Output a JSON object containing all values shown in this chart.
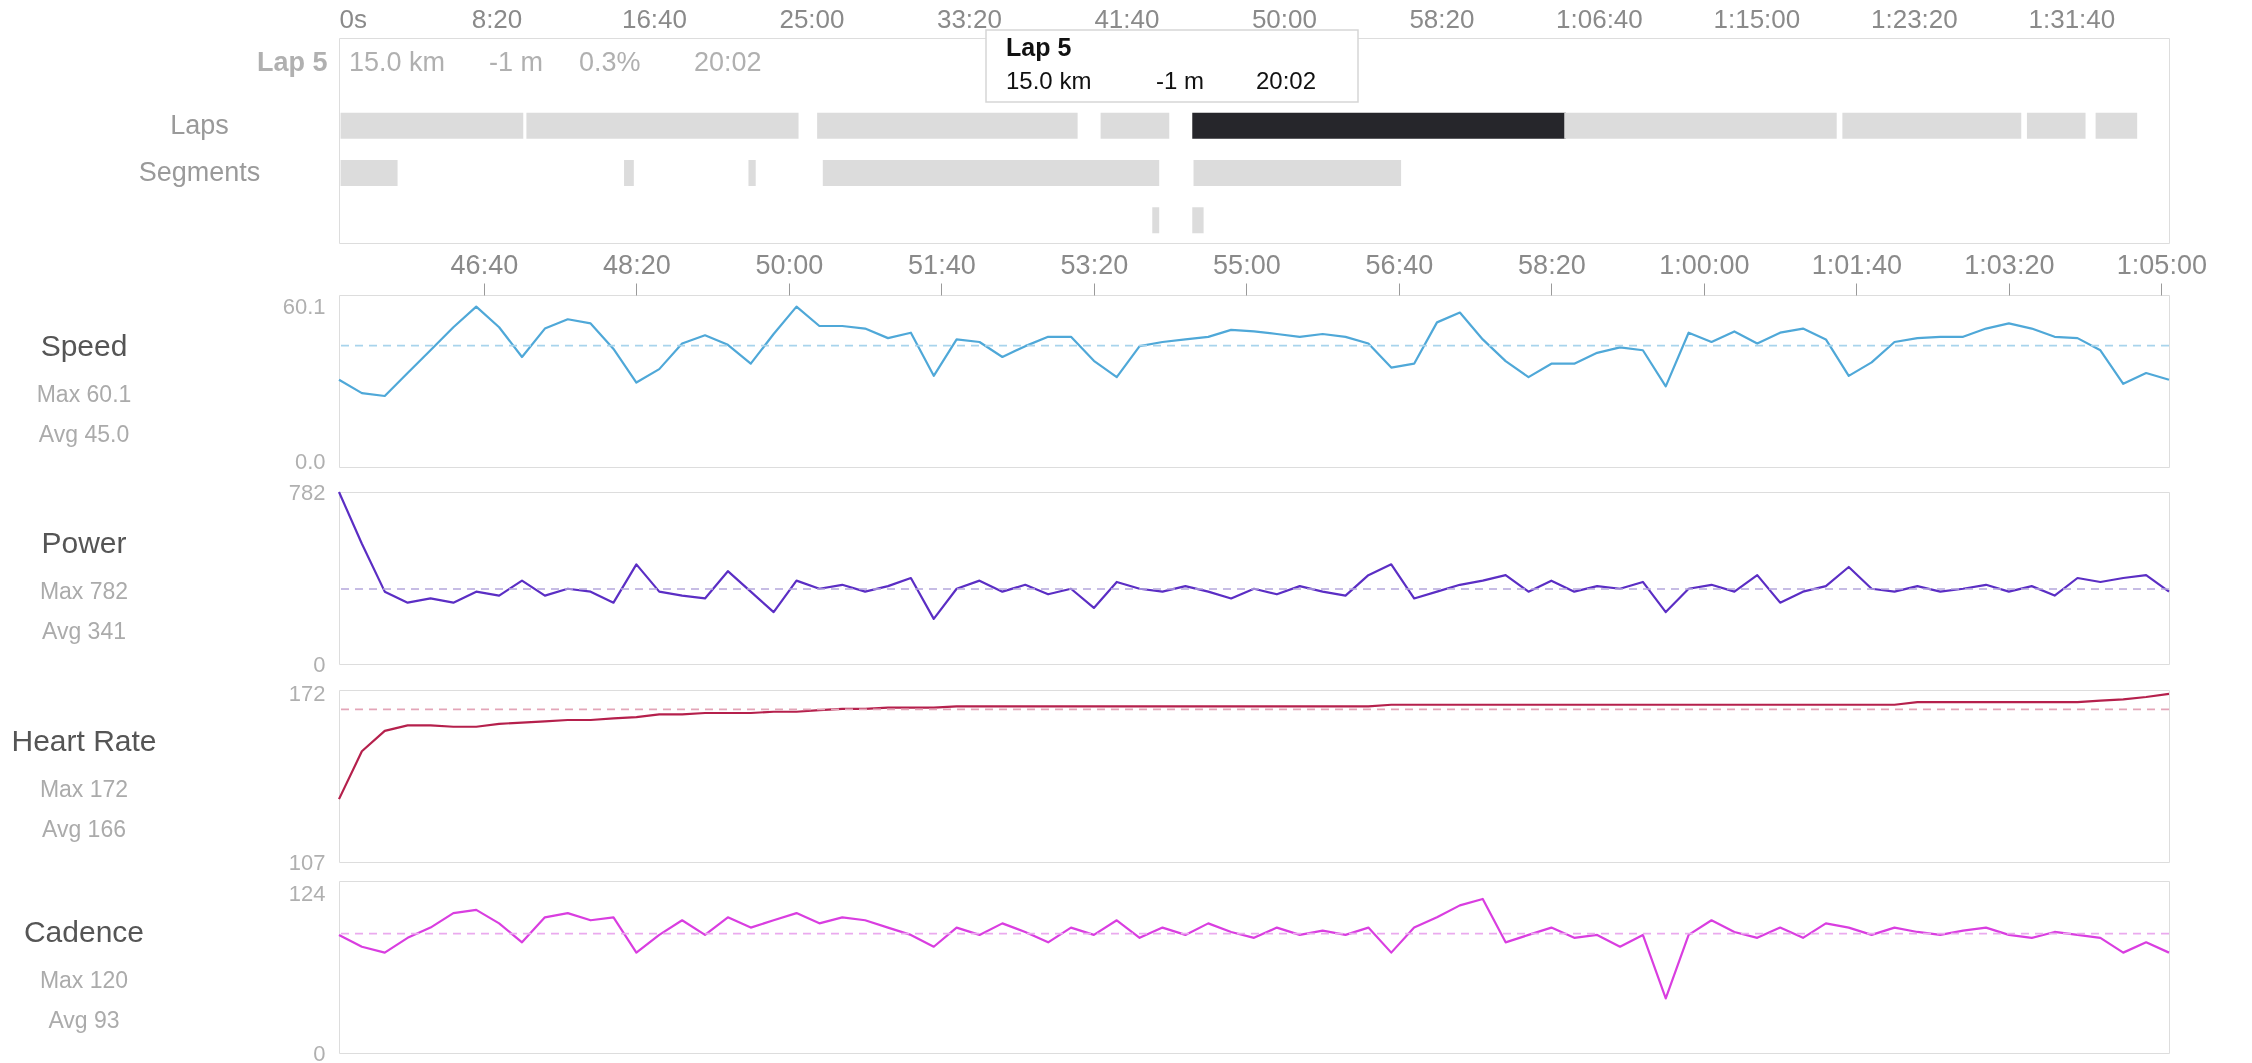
{
  "chart_data": [
    {
      "type": "bar",
      "orientation": "horizontal",
      "categories": [
        "Laps",
        "Segments",
        null
      ],
      "series": [
        {
          "base": [
            5,
            5,
            2582
          ],
          "values": [
            580,
            181,
            22
          ],
          "colors": [
            "#dcdcdc",
            "#dcdcdc",
            "#dcdcdc"
          ]
        },
        {
          "base": [
            595,
            905,
            2709
          ],
          "values": [
            864,
            31,
            36
          ],
          "colors": [
            "#dcdcdc",
            "#dcdcdc",
            "#dcdcdc"
          ]
        },
        {
          "base": [
            1518,
            1300,
            null
          ],
          "values": [
            827,
            23,
            null
          ],
          "colors": [
            "#dcdcdc",
            "#dcdcdc",
            "#dcdcdc"
          ]
        },
        {
          "base": [
            2418,
            1536,
            null
          ],
          "values": [
            218,
            1068,
            null
          ],
          "colors": [
            "#dcdcdc",
            "#dcdcdc",
            "#dcdcdc"
          ]
        },
        {
          "base": [
            2709,
            2713,
            null
          ],
          "values": [
            1186,
            659,
            null
          ],
          "colors": [
            "#26262b",
            "#dcdcdc",
            "#dcdcdc"
          ]
        },
        {
          "base": [
            3890,
            null,
            null
          ],
          "values": [
            865,
            null,
            null
          ],
          "colors": [
            "#dcdcdc",
            "#dcdcdc",
            "#dcdcdc"
          ]
        },
        {
          "base": [
            4773,
            null,
            null
          ],
          "values": [
            568,
            null,
            null
          ],
          "colors": [
            "#dcdcdc",
            "#dcdcdc",
            "#dcdcdc"
          ]
        },
        {
          "base": [
            5359,
            null,
            null
          ],
          "values": [
            186,
            null,
            null
          ],
          "colors": [
            "#dcdcdc",
            "#dcdcdc",
            "#dcdcdc"
          ]
        },
        {
          "base": [
            5577,
            null,
            null
          ],
          "values": [
            132,
            null,
            null
          ],
          "colors": [
            "#dcdcdc",
            "#dcdcdc",
            "#dcdcdc"
          ]
        }
      ],
      "xlim": [
        0,
        5810
      ],
      "xticks": [
        {
          "value": 0,
          "label": "0s"
        },
        {
          "value": 500,
          "label": "8:20"
        },
        {
          "value": 1000,
          "label": "16:40"
        },
        {
          "value": 1500,
          "label": "25:00"
        },
        {
          "value": 2000,
          "label": "33:20"
        },
        {
          "value": 2500,
          "label": "41:40"
        },
        {
          "value": 3000,
          "label": "50:00"
        },
        {
          "value": 3500,
          "label": "58:20"
        },
        {
          "value": 4000,
          "label": "1:06:40"
        },
        {
          "value": 4500,
          "label": "1:15:00"
        },
        {
          "value": 5000,
          "label": "1:23:20"
        },
        {
          "value": 5500,
          "label": "1:31:40"
        }
      ],
      "annotations": [
        "Lap 5",
        "15.0 km",
        "-1 m",
        "0.3%",
        "20:02",
        "Lap 5",
        "15.0 km",
        "-1 m",
        "20:02"
      ]
    },
    {
      "type": "line",
      "title": "Speed",
      "annotations": [
        "Max 60.1",
        "Avg 45.0"
      ],
      "x": [
        2705,
        2720,
        2735,
        2750,
        2765,
        2780,
        2795,
        2810,
        2825,
        2840,
        2855,
        2870,
        2885,
        2900,
        2915,
        2930,
        2945,
        2960,
        2975,
        2990,
        3005,
        3020,
        3035,
        3050,
        3065,
        3080,
        3095,
        3110,
        3125,
        3140,
        3155,
        3170,
        3185,
        3200,
        3215,
        3230,
        3245,
        3260,
        3275,
        3290,
        3305,
        3320,
        3335,
        3350,
        3365,
        3380,
        3395,
        3410,
        3425,
        3440,
        3455,
        3470,
        3485,
        3500,
        3515,
        3530,
        3545,
        3560,
        3575,
        3590,
        3605,
        3620,
        3635,
        3650,
        3665,
        3680,
        3695,
        3710,
        3725,
        3740,
        3755,
        3770,
        3785,
        3800,
        3815,
        3830,
        3845,
        3860,
        3875,
        3890,
        3905
      ],
      "series": [
        {
          "color": "#4fa8d8",
          "values": [
            31.8,
            26.6,
            25.5,
            34.4,
            43.2,
            52.1,
            60.1,
            52.1,
            40.6,
            51.6,
            55.2,
            53.6,
            43.7,
            30.7,
            35.9,
            45.8,
            49.0,
            45.3,
            38.0,
            49.5,
            60.1,
            52.6,
            52.6,
            51.6,
            47.9,
            50.0,
            33.3,
            47.4,
            46.4,
            40.6,
            44.8,
            48.4,
            48.4,
            39.1,
            32.8,
            44.8,
            46.4,
            47.4,
            48.4,
            51.1,
            50.5,
            49.5,
            48.4,
            49.5,
            48.4,
            45.8,
            36.5,
            38.0,
            54.0,
            57.8,
            47.4,
            39.0,
            32.8,
            38.0,
            38.0,
            42.2,
            44.3,
            43.2,
            29.2,
            50.0,
            46.4,
            50.5,
            45.8,
            50.0,
            51.6,
            47.4,
            33.3,
            38.5,
            46.4,
            47.9,
            48.4,
            48.4,
            51.6,
            53.6,
            51.6,
            48.4,
            47.9,
            43.2,
            30.2,
            34.4,
            31.8
          ]
        }
      ],
      "xlim": [
        2705,
        3905
      ],
      "xticks": [
        {
          "value": 2800,
          "label": "46:40"
        },
        {
          "value": 2900,
          "label": "48:20"
        },
        {
          "value": 3000,
          "label": "50:00"
        },
        {
          "value": 3100,
          "label": "51:40"
        },
        {
          "value": 3200,
          "label": "53:20"
        },
        {
          "value": 3300,
          "label": "55:00"
        },
        {
          "value": 3400,
          "label": "56:40"
        },
        {
          "value": 3500,
          "label": "58:20"
        },
        {
          "value": 3600,
          "label": "1:00:00"
        },
        {
          "value": 3700,
          "label": "1:01:40"
        },
        {
          "value": 3800,
          "label": "1:03:20"
        },
        {
          "value": 3900,
          "label": "1:05:00"
        }
      ],
      "ylim": [
        -2,
        64.6
      ],
      "yticks": [
        {
          "value": 0,
          "label": "0.0"
        },
        60.1
      ],
      "ref_lines": [
        {
          "axis": "y",
          "value": 45.0,
          "color": "#a8d4ec",
          "line_style": "dashed"
        }
      ]
    },
    {
      "type": "line",
      "title": "Power",
      "annotations": [
        "Max 782",
        "Avg 341"
      ],
      "tick_labels": "y",
      "x": [
        2705,
        2720,
        2735,
        2750,
        2765,
        2780,
        2795,
        2810,
        2825,
        2840,
        2855,
        2870,
        2885,
        2900,
        2915,
        2930,
        2945,
        2960,
        2975,
        2990,
        3005,
        3020,
        3035,
        3050,
        3065,
        3080,
        3095,
        3110,
        3125,
        3140,
        3155,
        3170,
        3185,
        3200,
        3215,
        3230,
        3245,
        3260,
        3275,
        3290,
        3305,
        3320,
        3335,
        3350,
        3365,
        3380,
        3395,
        3410,
        3425,
        3440,
        3455,
        3470,
        3485,
        3500,
        3515,
        3530,
        3545,
        3560,
        3575,
        3590,
        3605,
        3620,
        3635,
        3650,
        3665,
        3680,
        3695,
        3710,
        3725,
        3740,
        3755,
        3770,
        3785,
        3800,
        3815,
        3830,
        3845,
        3860,
        3875,
        3890,
        3905
      ],
      "series": [
        {
          "color": "#5b2ec4",
          "values": [
            782,
            547,
            329,
            279,
            298,
            279,
            329,
            311,
            379,
            311,
            342,
            329,
            279,
            453,
            329,
            311,
            298,
            422,
            329,
            236,
            379,
            342,
            360,
            329,
            354,
            391,
            205,
            342,
            379,
            329,
            360,
            317,
            342,
            255,
            373,
            342,
            329,
            354,
            329,
            298,
            342,
            317,
            354,
            329,
            311,
            404,
            453,
            298,
            329,
            360,
            379,
            404,
            329,
            379,
            329,
            354,
            342,
            373,
            236,
            342,
            360,
            329,
            404,
            279,
            329,
            354,
            441,
            342,
            329,
            354,
            329,
            342,
            360,
            329,
            354,
            311,
            391,
            373,
            391,
            404,
            329
          ]
        }
      ],
      "xlim": [
        2705,
        3905
      ],
      "ylim": [
        0,
        782
      ],
      "yticks": [
        0,
        782
      ],
      "ref_lines": [
        {
          "axis": "y",
          "value": 341,
          "color": "#b4a6dc",
          "line_style": "dashed"
        }
      ]
    },
    {
      "type": "line",
      "title": "Heart Rate",
      "annotations": [
        "Max 172",
        "Avg 166"
      ],
      "tick_labels": "y",
      "x": [
        2705,
        2720,
        2735,
        2750,
        2765,
        2780,
        2795,
        2810,
        2825,
        2840,
        2855,
        2870,
        2885,
        2900,
        2915,
        2930,
        2945,
        2960,
        2975,
        2990,
        3005,
        3020,
        3035,
        3050,
        3065,
        3080,
        3095,
        3110,
        3125,
        3140,
        3155,
        3170,
        3185,
        3200,
        3215,
        3230,
        3245,
        3260,
        3275,
        3290,
        3305,
        3320,
        3335,
        3350,
        3365,
        3380,
        3395,
        3410,
        3425,
        3440,
        3455,
        3470,
        3485,
        3500,
        3515,
        3530,
        3545,
        3560,
        3575,
        3590,
        3605,
        3620,
        3635,
        3650,
        3665,
        3680,
        3695,
        3710,
        3725,
        3740,
        3755,
        3770,
        3785,
        3800,
        3815,
        3830,
        3845,
        3860,
        3875,
        3890,
        3905
      ],
      "series": [
        {
          "color": "#b5204c",
          "values": [
            131.3,
            149.8,
            157.7,
            159.8,
            159.8,
            159.3,
            159.3,
            160.4,
            160.9,
            161.4,
            161.9,
            161.9,
            162.5,
            163.0,
            164.1,
            164.1,
            164.6,
            164.6,
            164.6,
            165.1,
            165.1,
            165.7,
            166.2,
            166.2,
            166.7,
            166.7,
            166.7,
            167.2,
            167.2,
            167.2,
            167.2,
            167.2,
            167.2,
            167.2,
            167.2,
            167.2,
            167.2,
            167.2,
            167.2,
            167.2,
            167.2,
            167.2,
            167.2,
            167.2,
            167.2,
            167.2,
            167.8,
            167.8,
            167.8,
            167.8,
            167.8,
            167.8,
            167.8,
            167.8,
            167.8,
            167.8,
            167.8,
            167.8,
            167.8,
            167.8,
            167.8,
            167.8,
            167.8,
            167.8,
            167.8,
            167.8,
            167.8,
            167.8,
            167.8,
            168.8,
            168.8,
            168.8,
            168.8,
            168.8,
            168.8,
            168.8,
            168.8,
            169.4,
            169.9,
            170.8,
            172
          ]
        }
      ],
      "xlim": [
        2705,
        3905
      ],
      "ylim": [
        107,
        173.5
      ],
      "yticks": [
        107,
        172
      ],
      "ref_lines": [
        {
          "axis": "y",
          "value": 166,
          "color": "#e3a5b8",
          "line_style": "dashed"
        }
      ]
    },
    {
      "type": "line",
      "title": "Cadence",
      "annotations": [
        "Max 120",
        "Avg 93"
      ],
      "tick_labels": "y",
      "x": [
        2705,
        2720,
        2735,
        2750,
        2765,
        2780,
        2795,
        2810,
        2825,
        2840,
        2855,
        2870,
        2885,
        2900,
        2915,
        2930,
        2945,
        2960,
        2975,
        2990,
        3005,
        3020,
        3035,
        3050,
        3065,
        3080,
        3095,
        3110,
        3125,
        3140,
        3155,
        3170,
        3185,
        3200,
        3215,
        3230,
        3245,
        3260,
        3275,
        3290,
        3305,
        3320,
        3335,
        3350,
        3365,
        3380,
        3395,
        3410,
        3425,
        3440,
        3455,
        3470,
        3485,
        3500,
        3515,
        3530,
        3545,
        3560,
        3575,
        3590,
        3605,
        3620,
        3635,
        3650,
        3665,
        3680,
        3695,
        3710,
        3725,
        3740,
        3755,
        3770,
        3785,
        3800,
        3815,
        3830,
        3845,
        3860,
        3875,
        3890,
        3905
      ],
      "series": [
        {
          "color": "#d93ee0",
          "values": [
            92,
            82.8,
            78.2,
            89.7,
            97.7,
            109,
            111.5,
            101,
            86.2,
            105.7,
            109,
            103.4,
            105.7,
            78.2,
            92,
            103.4,
            92,
            105.7,
            97.7,
            103.4,
            109,
            101,
            105.7,
            103.4,
            97.7,
            92,
            82.8,
            97.7,
            92,
            101,
            94.3,
            86.2,
            97.7,
            92,
            103.4,
            89.7,
            97.7,
            92,
            101,
            94.3,
            89.7,
            97.7,
            92,
            95.4,
            92,
            97.7,
            78.2,
            97.7,
            105.7,
            115,
            120,
            86.2,
            92,
            97.7,
            89.7,
            92,
            82.8,
            92,
            42.5,
            92,
            103.4,
            94.3,
            89.7,
            97.7,
            89.7,
            101,
            97.7,
            92,
            97.7,
            94.3,
            92,
            95.4,
            97.7,
            92,
            89.7,
            94.3,
            92,
            89.7,
            78.2,
            86.2,
            78.2
          ]
        }
      ],
      "xlim": [
        2705,
        3905
      ],
      "ylim": [
        0,
        134
      ],
      "yticks": [
        0,
        124
      ],
      "ref_lines": [
        {
          "axis": "y",
          "value": 93,
          "color": "#eaaaee",
          "line_style": "dashed"
        }
      ]
    }
  ]
}
